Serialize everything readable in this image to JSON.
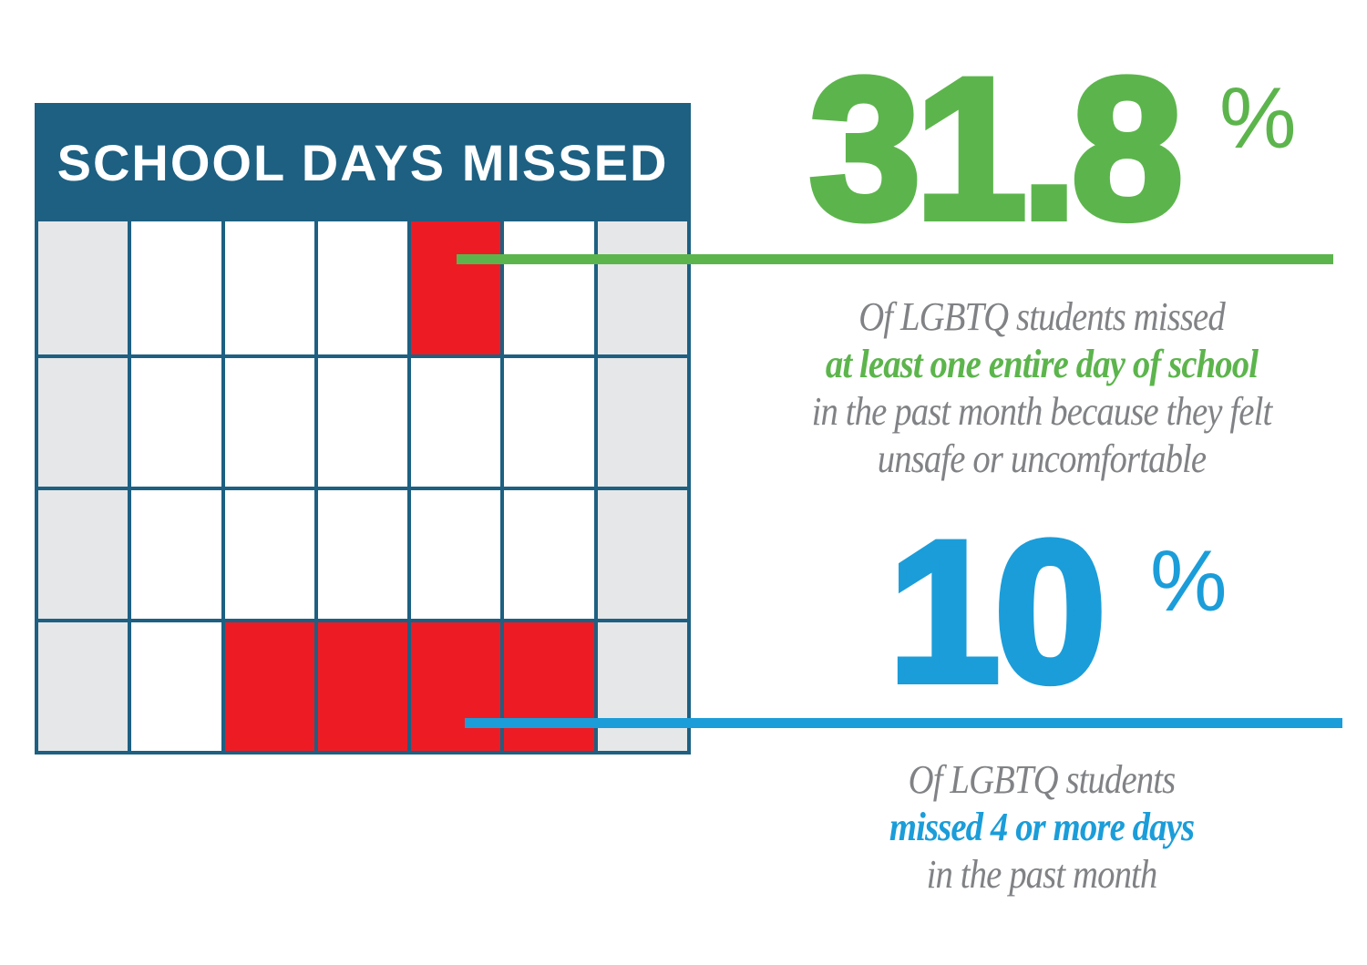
{
  "calendar": {
    "title": "SCHOOL DAYS MISSED",
    "rows": 4,
    "cols": 7,
    "cells": [
      "weekend",
      "day",
      "day",
      "day",
      "missed",
      "day",
      "weekend",
      "weekend",
      "day",
      "day",
      "day",
      "day",
      "day",
      "weekend",
      "weekend",
      "day",
      "day",
      "day",
      "day",
      "day",
      "weekend",
      "weekend",
      "day",
      "missed",
      "missed",
      "missed",
      "missed",
      "weekend"
    ]
  },
  "stats": [
    {
      "value": "31.8",
      "unit": "%",
      "color": "#5CB54C",
      "desc_lines": [
        {
          "text": "Of LGBTQ students missed",
          "emphasis": false
        },
        {
          "text": "at least one entire day of school",
          "emphasis": true
        },
        {
          "text": "in the past month because they felt",
          "emphasis": false
        },
        {
          "text": "unsafe or uncomfortable",
          "emphasis": false
        }
      ]
    },
    {
      "value": "10",
      "unit": "%",
      "color": "#1B9DD9",
      "desc_lines": [
        {
          "text": "Of LGBTQ students",
          "emphasis": false
        },
        {
          "text": "missed 4 or more days",
          "emphasis": true
        },
        {
          "text": "in the past month",
          "emphasis": false
        }
      ]
    }
  ],
  "colors": {
    "teal": "#1D6082",
    "cell_gray": "#E6E7E8",
    "red": "#ED1C24",
    "green": "#5CB54C",
    "blue": "#1B9DD9",
    "gray_text": "#808285",
    "white": "#FFFFFF"
  },
  "chart_data": {
    "type": "table",
    "style": "calendar-pictogram infographic",
    "title": "SCHOOL DAYS MISSED",
    "series": [
      {
        "name": "Of LGBTQ students missed at least one entire day of school in the past month because they felt unsafe or uncomfortable",
        "value": 31.8,
        "unit": "%",
        "color": "#5CB54C"
      },
      {
        "name": "Of LGBTQ students missed 4 or more days in the past month",
        "value": 10,
        "unit": "%",
        "color": "#1B9DD9"
      }
    ],
    "calendar_pictogram": {
      "rows": 4,
      "cols": 7,
      "weekend_columns": [
        1,
        7
      ],
      "missed_day_cells": [
        {
          "row": 1,
          "col": 5
        },
        {
          "row": 4,
          "col": 3
        },
        {
          "row": 4,
          "col": 4
        },
        {
          "row": 4,
          "col": 5
        },
        {
          "row": 4,
          "col": 6
        }
      ],
      "total_missed_marked": 5
    },
    "legend_position": "none",
    "grid": true
  }
}
